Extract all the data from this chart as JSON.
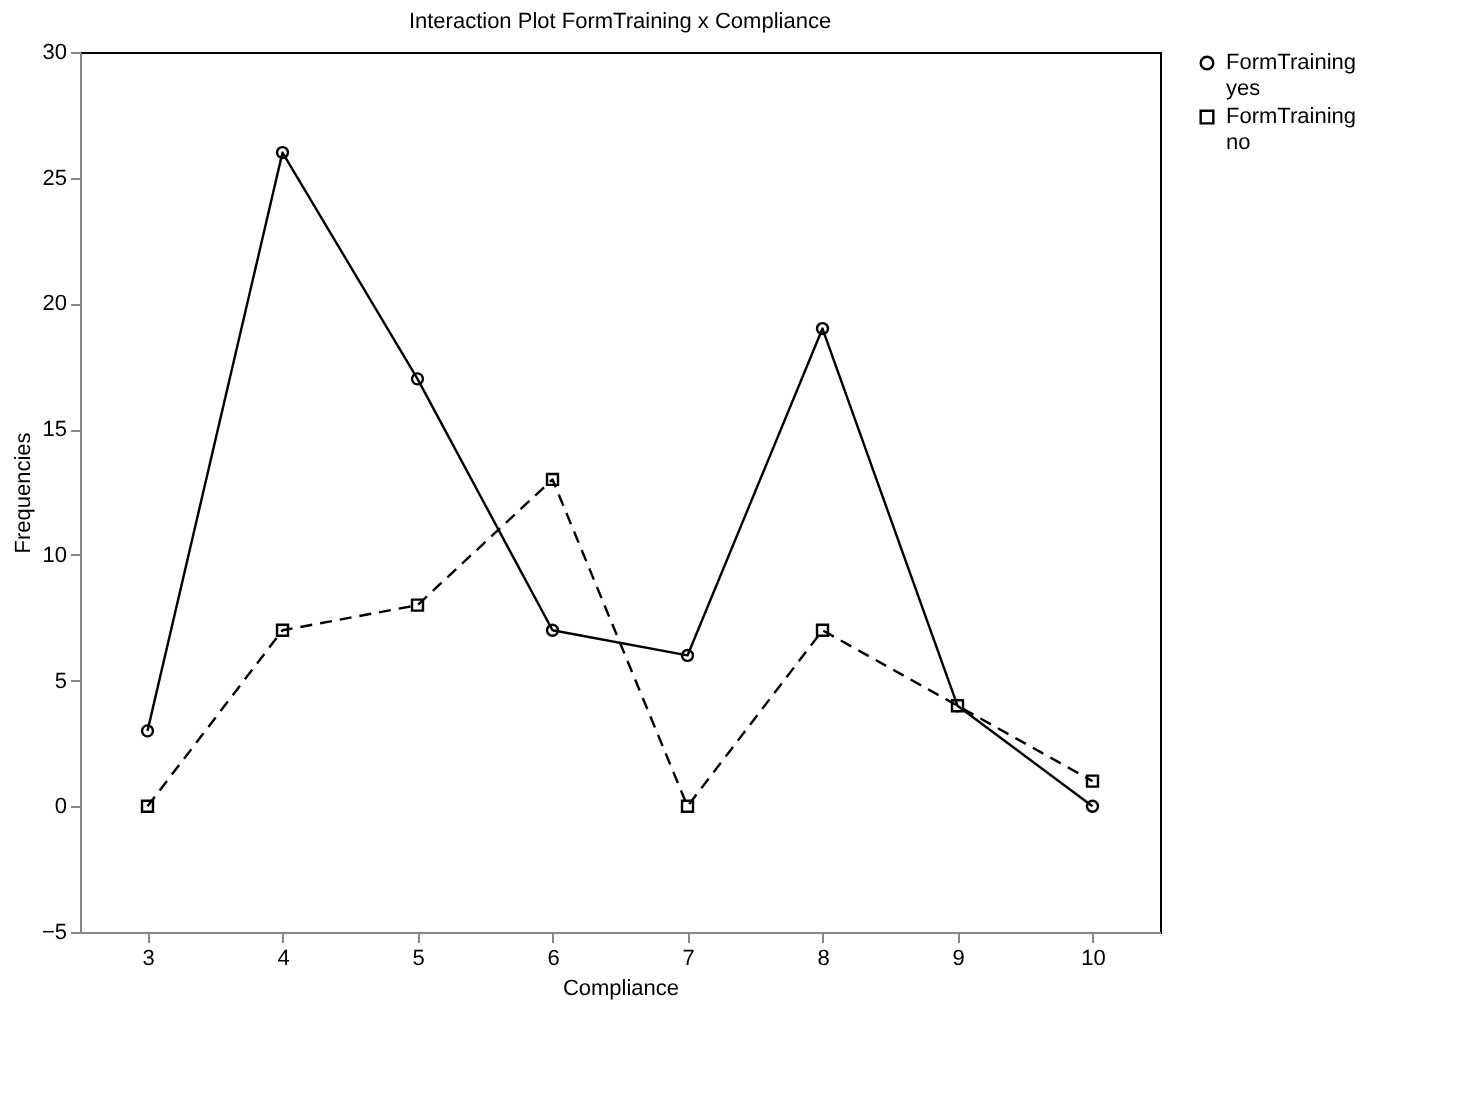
{
  "chart_data": {
    "type": "line",
    "title": "Interaction Plot  FormTraining x Compliance",
    "xlabel": "Compliance",
    "ylabel": "Frequencies",
    "x": [
      3,
      4,
      5,
      6,
      7,
      8,
      9,
      10
    ],
    "series": [
      {
        "name": "FormTraining yes",
        "color": "#000000",
        "marker": "circle",
        "line_style": "solid",
        "values": [
          3,
          26,
          17,
          7,
          6,
          19,
          4,
          0
        ]
      },
      {
        "name": "FormTraining no",
        "color": "#000000",
        "marker": "square",
        "line_style": "dashed",
        "values": [
          0,
          7,
          8,
          13,
          0,
          7,
          4,
          1
        ]
      }
    ],
    "xlim": [
      2.5,
      10.5
    ],
    "xticks": [
      3,
      4,
      5,
      6,
      7,
      8,
      9,
      10
    ],
    "ylim": [
      -5,
      30
    ],
    "yticks": [
      -5,
      0,
      5,
      10,
      15,
      20,
      25,
      30
    ],
    "grid": false,
    "legend": "right"
  }
}
